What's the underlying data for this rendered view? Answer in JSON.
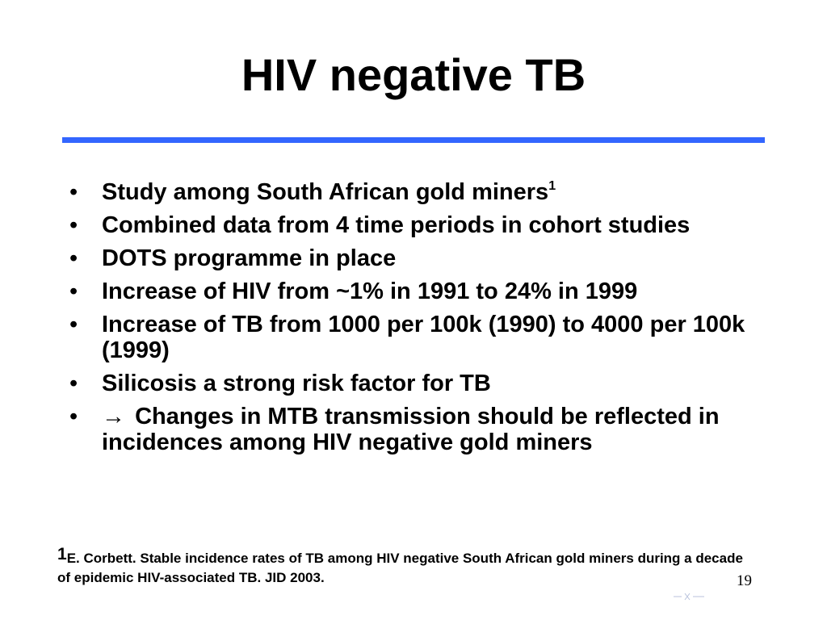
{
  "slide": {
    "title": "HIV negative TB",
    "accent_color": "#3366ff",
    "bullets": [
      {
        "text": "Study among South African gold miners",
        "superscript": "1"
      },
      {
        "text": "Combined data from 4 time periods in cohort studies"
      },
      {
        "text": "DOTS programme in place"
      },
      {
        "text": "Increase of HIV from ~1% in 1991 to 24% in 1999"
      },
      {
        "text": "Increase of TB from 1000 per 100k (1990) to 4000 per 100k (1999)"
      },
      {
        "text": "Silicosis a strong risk factor for TB"
      },
      {
        "arrow": "→",
        "text": "Changes in MTB transmission should be reflected in incidences among HIV negative gold miners"
      }
    ],
    "bullet_glyph": "•",
    "footnote": {
      "marker": "1",
      "text": "E. Corbett. Stable incidence rates of TB among HIV negative South African gold miners during a decade of epidemic HIV-associated TB. JID 2003."
    },
    "page_number": "19",
    "logo_icon": "faint-logo-icon"
  }
}
